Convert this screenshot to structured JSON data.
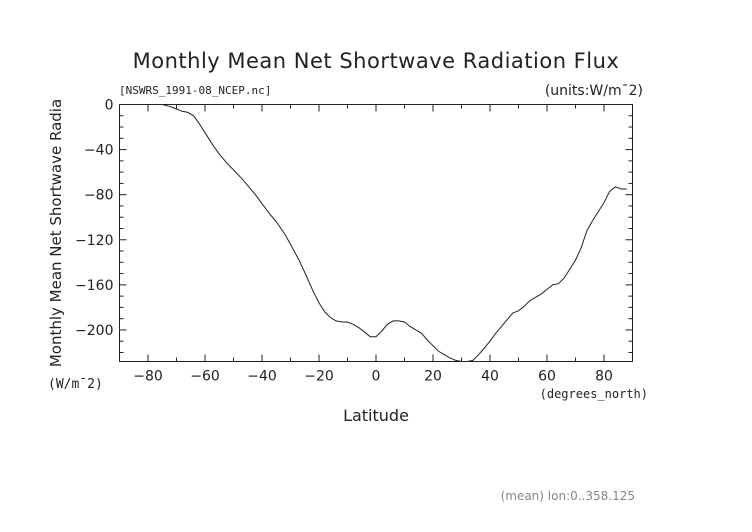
{
  "chart_data": {
    "type": "line",
    "title": "Monthly Mean Net Shortwave Radiation Flux",
    "file_label": "[NSWRS_1991-08_NCEP.nc]",
    "units_label": "(units:W/m¯2)",
    "xlabel": "Latitude",
    "x_units": "(degrees_north)",
    "ylabel": "Monthly Mean Net Shortwave Radia",
    "y_units": "(W/m¯2)",
    "footer": "(mean) lon:0..358.125",
    "xlim": [
      -90,
      90
    ],
    "ylim": [
      -228,
      0
    ],
    "x_ticks": [
      -80,
      -60,
      -40,
      -20,
      0,
      20,
      40,
      60,
      80
    ],
    "x_tick_labels": [
      "−80",
      "−60",
      "−40",
      "−20",
      "0",
      "20",
      "40",
      "60",
      "80"
    ],
    "y_ticks": [
      0,
      -40,
      -80,
      -120,
      -160,
      -200
    ],
    "y_tick_labels": [
      "0",
      "−40",
      "−80",
      "−120",
      "−160",
      "−200"
    ],
    "grid": false,
    "series": [
      {
        "x": [
          -77,
          -75,
          -72,
          -70,
          -68,
          -66,
          -64,
          -62,
          -60,
          -57,
          -55,
          -52,
          -50,
          -47,
          -45,
          -42,
          -40,
          -37,
          -35,
          -32,
          -30,
          -27,
          -25,
          -22,
          -20,
          -18,
          -16,
          -14,
          -12,
          -10,
          -8,
          -6,
          -4,
          -2,
          0,
          2,
          4,
          6,
          8,
          10,
          12,
          14,
          16,
          18,
          20,
          22,
          24,
          26,
          28,
          30,
          32,
          34,
          36,
          38,
          40,
          42,
          44,
          46,
          48,
          50,
          52,
          54,
          56,
          58,
          60,
          62,
          64,
          66,
          68,
          70,
          72,
          74,
          76,
          78,
          80,
          82,
          84,
          86,
          88
        ],
        "y": [
          0,
          0,
          -2,
          -4,
          -6,
          -7,
          -10,
          -17,
          -25,
          -37,
          -44,
          -53,
          -58,
          -66,
          -72,
          -81,
          -88,
          -98,
          -104,
          -115,
          -124,
          -138,
          -149,
          -166,
          -176,
          -184,
          -189,
          -192,
          -193,
          -193,
          -195,
          -198,
          -202,
          -206,
          -206,
          -201,
          -195,
          -192,
          -192,
          -193,
          -197,
          -200,
          -203,
          -209,
          -214,
          -219,
          -222,
          -225,
          -227,
          -228,
          -228,
          -227,
          -222,
          -216,
          -210,
          -203,
          -197,
          -191,
          -185,
          -183,
          -179,
          -174,
          -171,
          -168,
          -164,
          -160,
          -159,
          -154,
          -146,
          -138,
          -127,
          -112,
          -103,
          -95,
          -87,
          -77,
          -73,
          -75,
          -75
        ]
      }
    ]
  }
}
